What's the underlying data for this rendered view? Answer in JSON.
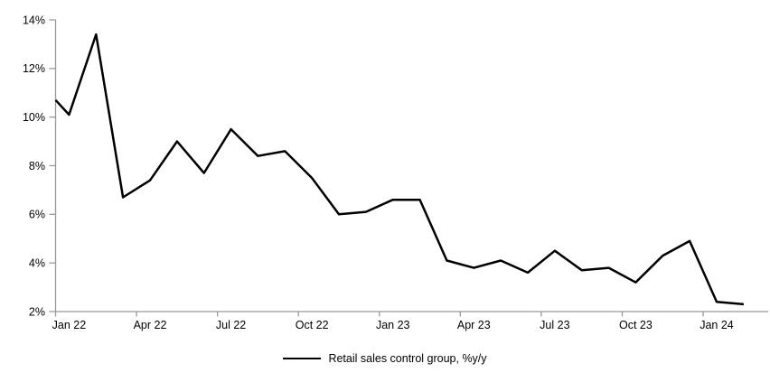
{
  "chart_data": {
    "type": "line",
    "title": "",
    "legend_position": "bottom-center",
    "grid": false,
    "axis_color": "#999999",
    "line_color": "#000000",
    "ylim": [
      2,
      14
    ],
    "ytick_step": 2,
    "yticks": [
      "2%",
      "4%",
      "6%",
      "8%",
      "10%",
      "12%",
      "14%"
    ],
    "xticks": [
      "Jan 22",
      "Apr 22",
      "Jul 22",
      "Oct 22",
      "Jan 23",
      "Apr 23",
      "Jul 23",
      "Oct 23",
      "Jan 24"
    ],
    "x": [
      "Jan 22",
      "Feb 22",
      "Mar 22",
      "Apr 22",
      "May 22",
      "Jun 22",
      "Jul 22",
      "Aug 22",
      "Sep 22",
      "Oct 22",
      "Nov 22",
      "Dec 22",
      "Jan 23",
      "Feb 23",
      "Mar 23",
      "Apr 23",
      "May 23",
      "Jun 23",
      "Jul 23",
      "Aug 23",
      "Sep 23",
      "Oct 23",
      "Nov 23",
      "Dec 23",
      "Jan 24",
      "Feb 24"
    ],
    "series": [
      {
        "name": "Retail sales control group, %y/y",
        "color": "#000000",
        "values": [
          10.1,
          13.4,
          6.7,
          7.4,
          9.0,
          7.7,
          9.5,
          8.4,
          8.6,
          7.5,
          6.0,
          6.1,
          6.6,
          6.6,
          4.1,
          3.8,
          4.1,
          3.6,
          4.5,
          3.7,
          3.8,
          3.2,
          4.3,
          4.9,
          2.4,
          2.3
        ]
      }
    ],
    "entry_segment": {
      "description": "line enters plot clipped at left axis",
      "value_at_axis": 10.7
    }
  }
}
